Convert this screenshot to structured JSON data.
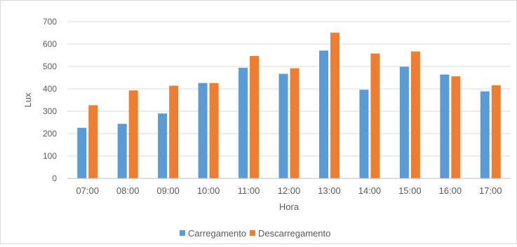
{
  "chart_data": {
    "type": "bar",
    "categories": [
      "07:00",
      "08:00",
      "09:00",
      "10:00",
      "11:00",
      "12:00",
      "13:00",
      "14:00",
      "15:00",
      "16:00",
      "17:00"
    ],
    "series": [
      {
        "name": "Carregamento",
        "color": "#5b9bd5",
        "values": [
          226,
          244,
          290,
          426,
          494,
          467,
          571,
          396,
          499,
          464,
          389
        ]
      },
      {
        "name": "Descarregamento",
        "color": "#ed7d31",
        "values": [
          327,
          393,
          414,
          426,
          547,
          492,
          651,
          558,
          567,
          456,
          416
        ]
      }
    ],
    "xlabel": "Hora",
    "ylabel": "Lux",
    "ylim": [
      0,
      700
    ],
    "yticks": [
      0,
      100,
      200,
      300,
      400,
      500,
      600,
      700
    ],
    "grid": true,
    "legend_position": "bottom"
  }
}
